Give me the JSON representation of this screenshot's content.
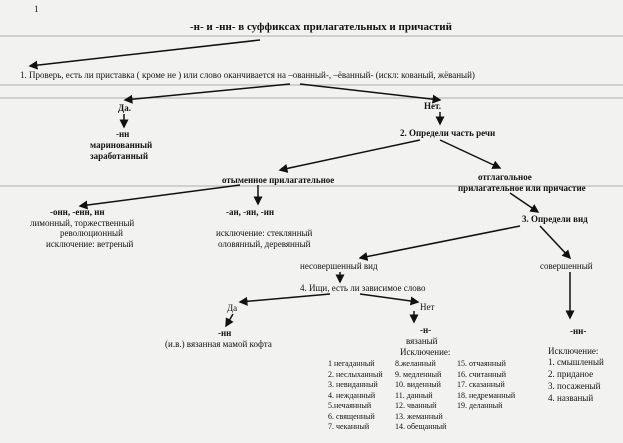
{
  "page_number": "1",
  "title": "-н- и -нн- в суффиксах прилагательных и причастий",
  "step1": "1. Проверь, есть ли приставка ( кроме не ) или слово оканчивается на –ованный-, –ёванный-    (искл: кованый, жёваный)",
  "yes1": "Да.",
  "no1": "Нет.",
  "prefix_branch": {
    "suffix": "-нн",
    "examples": [
      "маринованный",
      "заработанный"
    ]
  },
  "step2": "2. Определи часть речи",
  "denominal": {
    "label": "отыменное прилагательное",
    "group1": {
      "suffix": "-онн, -енн, нн",
      "lines": [
        "лимонный, торжественный",
        "революционный",
        "исключение: ветреный"
      ]
    },
    "group2": {
      "suffix": "-ан, -ян, -ин",
      "lines": [
        "исключение: стеклянный",
        "оловянный, деревянный"
      ]
    }
  },
  "verbal": {
    "lines": [
      "отглагольное",
      "прилагательное   или причастие"
    ]
  },
  "step3": "3. Определи вид",
  "imperfective": "несовершенный вид",
  "perfective": "совершенный",
  "step4": "4. Ищи, есть ли зависимое слово",
  "yes4": "Да",
  "no4": "Нет",
  "dependent": {
    "suffix": "-нн",
    "example": "(и.в.) вязанная мамой кофта"
  },
  "no_dependent": {
    "suffix": "-н-",
    "example": "вязаный",
    "exceptions_title": "Исключение:",
    "exceptions": [
      [
        "1 негаданный",
        "2. неслыханный",
        "3. невиданный",
        "4. нежданный",
        "5.нечаянный",
        "6. священный",
        "7. чеканный"
      ],
      [
        "8.желанный",
        "9. медленный",
        "10. виденный",
        "11. данный",
        "12. чванный",
        "13. жеманный",
        "14. обещанный"
      ],
      [
        "15. отчаянный",
        "16. считанный",
        "17. сказанный",
        "18. недреманный",
        "19. деланный"
      ]
    ]
  },
  "perfective_branch": {
    "suffix": "-нн-",
    "exceptions_title": "Исключение:",
    "exceptions": [
      "1. смышленый",
      "2. приданое",
      "3. посаженый",
      "4. названый"
    ]
  }
}
